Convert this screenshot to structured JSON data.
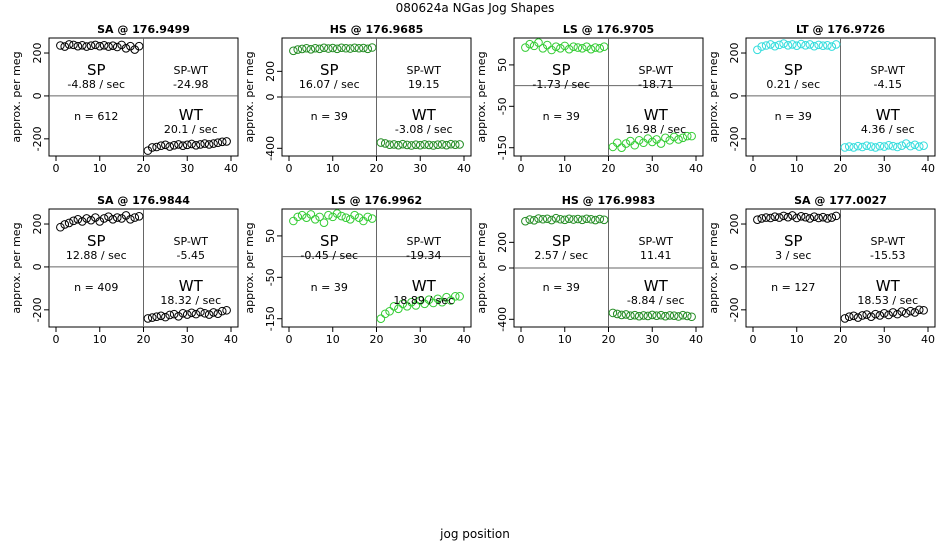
{
  "figure": {
    "title": "080624a   NGas Jog Shapes",
    "xlabel": "jog position"
  },
  "chart_data": [
    {
      "type": "scatter",
      "title": "SA @ 176.9499",
      "ylabel": "approx. per meg",
      "color": "#000000",
      "xlim": [
        0,
        40
      ],
      "ylim": [
        -280,
        270
      ],
      "xticks": [
        "0",
        "10",
        "20",
        "30",
        "40"
      ],
      "yticks": [
        {
          "value": 200,
          "label": "200"
        },
        {
          "value": 0,
          "label": "0"
        },
        {
          "value": -200,
          "label": "-200"
        }
      ],
      "x": [
        1,
        2,
        3,
        4,
        5,
        6,
        7,
        8,
        9,
        10,
        11,
        12,
        13,
        14,
        15,
        16,
        17,
        18,
        19,
        21,
        22,
        23,
        24,
        25,
        26,
        27,
        28,
        29,
        30,
        31,
        32,
        33,
        34,
        35,
        36,
        37,
        38,
        39
      ],
      "y": [
        235,
        230,
        240,
        238,
        232,
        236,
        230,
        234,
        238,
        232,
        236,
        230,
        234,
        228,
        238,
        222,
        232,
        216,
        232,
        -255,
        -240,
        -238,
        -232,
        -228,
        -236,
        -230,
        -226,
        -232,
        -228,
        -224,
        -230,
        -226,
        -222,
        -226,
        -222,
        -218,
        -214,
        -212
      ],
      "annotations": {
        "sp_label": "SP",
        "sp_value": "-4.88 / sec",
        "spwt_label": "SP-WT",
        "spwt_value": "-24.98",
        "n_text": "n = 612",
        "wt_label": "WT",
        "wt_value": "20.1 / sec"
      }
    },
    {
      "type": "scatter",
      "title": "HS @ 176.9685",
      "ylabel": "approx. per meg",
      "color": "#228B22",
      "xlim": [
        0,
        40
      ],
      "ylim": [
        -460,
        460
      ],
      "xticks": [
        "0",
        "10",
        "20",
        "30",
        "40"
      ],
      "yticks": [
        {
          "value": 200,
          "label": "200"
        },
        {
          "value": 0,
          "label": "0"
        },
        {
          "value": -400,
          "label": "-400"
        }
      ],
      "x": [
        1,
        2,
        3,
        4,
        5,
        6,
        7,
        8,
        9,
        10,
        11,
        12,
        13,
        14,
        15,
        16,
        17,
        18,
        19,
        21,
        22,
        23,
        24,
        25,
        26,
        27,
        28,
        29,
        30,
        31,
        32,
        33,
        34,
        35,
        36,
        37,
        38,
        39
      ],
      "y": [
        360,
        370,
        375,
        380,
        372,
        380,
        376,
        384,
        378,
        382,
        376,
        384,
        380,
        378,
        384,
        380,
        382,
        376,
        386,
        -355,
        -362,
        -372,
        -370,
        -376,
        -368,
        -374,
        -378,
        -372,
        -376,
        -370,
        -374,
        -378,
        -372,
        -370,
        -376,
        -368,
        -372,
        -370
      ],
      "annotations": {
        "sp_label": "SP",
        "sp_value": "16.07 / sec",
        "spwt_label": "SP-WT",
        "spwt_value": "19.15",
        "n_text": "n = 39",
        "wt_label": "WT",
        "wt_value": "-3.08 / sec"
      }
    },
    {
      "type": "scatter",
      "title": "LS @ 176.9705",
      "ylabel": "approx. per meg",
      "color": "#33CC33",
      "xlim": [
        0,
        40
      ],
      "ylim": [
        -170,
        115
      ],
      "xticks": [
        "0",
        "10",
        "20",
        "30",
        "40"
      ],
      "yticks": [
        {
          "value": 50,
          "label": "50"
        },
        {
          "value": -50,
          "label": "-50"
        },
        {
          "value": -150,
          "label": "-150"
        }
      ],
      "x": [
        1,
        2,
        3,
        4,
        5,
        6,
        7,
        8,
        9,
        10,
        11,
        12,
        13,
        14,
        15,
        16,
        17,
        18,
        19,
        21,
        22,
        23,
        24,
        25,
        26,
        27,
        28,
        29,
        30,
        31,
        32,
        33,
        34,
        35,
        36,
        37,
        38,
        39
      ],
      "y": [
        92,
        100,
        96,
        104,
        90,
        98,
        86,
        94,
        90,
        96,
        88,
        94,
        92,
        90,
        94,
        88,
        92,
        90,
        94,
        -148,
        -138,
        -150,
        -140,
        -134,
        -144,
        -132,
        -138,
        -128,
        -136,
        -130,
        -140,
        -126,
        -132,
        -124,
        -130,
        -126,
        -122,
        -122
      ],
      "annotations": {
        "sp_label": "SP",
        "sp_value": "-1.73 / sec",
        "spwt_label": "SP-WT",
        "spwt_value": "-18.71",
        "n_text": "n = 39",
        "wt_label": "WT",
        "wt_value": "16.98 / sec"
      }
    },
    {
      "type": "scatter",
      "title": "LT @ 176.9726",
      "ylabel": "approx. per meg",
      "color": "#33DDDD",
      "xlim": [
        0,
        40
      ],
      "ylim": [
        -280,
        270
      ],
      "xticks": [
        "0",
        "10",
        "20",
        "30",
        "40"
      ],
      "yticks": [
        {
          "value": 200,
          "label": "200"
        },
        {
          "value": 0,
          "label": "0"
        },
        {
          "value": -200,
          "label": "-200"
        }
      ],
      "x": [
        1,
        2,
        3,
        4,
        5,
        6,
        7,
        8,
        9,
        10,
        11,
        12,
        13,
        14,
        15,
        16,
        17,
        18,
        19,
        21,
        22,
        23,
        24,
        25,
        26,
        27,
        28,
        29,
        30,
        31,
        32,
        33,
        34,
        35,
        36,
        37,
        38,
        39
      ],
      "y": [
        215,
        230,
        235,
        240,
        232,
        238,
        244,
        236,
        240,
        234,
        242,
        236,
        240,
        232,
        238,
        234,
        236,
        230,
        240,
        -240,
        -236,
        -240,
        -234,
        -238,
        -232,
        -236,
        -240,
        -234,
        -236,
        -230,
        -234,
        -238,
        -232,
        -222,
        -234,
        -228,
        -236,
        -232
      ],
      "annotations": {
        "sp_label": "SP",
        "sp_value": "0.21 / sec",
        "spwt_label": "SP-WT",
        "spwt_value": "-4.15",
        "n_text": "n = 39",
        "wt_label": "WT",
        "wt_value": "4.36 / sec"
      }
    },
    {
      "type": "scatter",
      "title": "SA @ 176.9844",
      "ylabel": "approx. per meg",
      "color": "#000000",
      "xlim": [
        0,
        40
      ],
      "ylim": [
        -280,
        270
      ],
      "xticks": [
        "0",
        "10",
        "20",
        "30",
        "40"
      ],
      "yticks": [
        {
          "value": 200,
          "label": "200"
        },
        {
          "value": 0,
          "label": "0"
        },
        {
          "value": -200,
          "label": "-200"
        }
      ],
      "x": [
        1,
        2,
        3,
        4,
        5,
        6,
        7,
        8,
        9,
        10,
        11,
        12,
        13,
        14,
        15,
        16,
        17,
        18,
        19,
        21,
        22,
        23,
        24,
        25,
        26,
        27,
        28,
        29,
        30,
        31,
        32,
        33,
        34,
        35,
        36,
        37,
        38,
        39
      ],
      "y": [
        185,
        198,
        205,
        215,
        222,
        212,
        226,
        218,
        230,
        212,
        226,
        234,
        222,
        230,
        226,
        240,
        222,
        230,
        236,
        -240,
        -236,
        -232,
        -228,
        -234,
        -224,
        -220,
        -230,
        -216,
        -222,
        -214,
        -220,
        -210,
        -216,
        -222,
        -212,
        -218,
        -206,
        -202
      ],
      "annotations": {
        "sp_label": "SP",
        "sp_value": "12.88 / sec",
        "spwt_label": "SP-WT",
        "spwt_value": "-5.45",
        "n_text": "n = 409",
        "wt_label": "WT",
        "wt_value": "18.32 / sec"
      }
    },
    {
      "type": "scatter",
      "title": "LS @ 176.9962",
      "ylabel": "approx. per meg",
      "color": "#33CC33",
      "xlim": [
        0,
        40
      ],
      "ylim": [
        -170,
        115
      ],
      "xticks": [
        "0",
        "10",
        "20",
        "30",
        "40"
      ],
      "yticks": [
        {
          "value": 50,
          "label": "50"
        },
        {
          "value": -50,
          "label": "-50"
        },
        {
          "value": -150,
          "label": "-150"
        }
      ],
      "x": [
        1,
        2,
        3,
        4,
        5,
        6,
        7,
        8,
        9,
        10,
        11,
        12,
        13,
        14,
        15,
        16,
        17,
        18,
        19,
        21,
        22,
        23,
        24,
        25,
        26,
        27,
        28,
        29,
        30,
        31,
        32,
        33,
        34,
        35,
        36,
        37,
        38,
        39
      ],
      "y": [
        86,
        96,
        100,
        94,
        102,
        90,
        96,
        82,
        100,
        96,
        104,
        98,
        94,
        90,
        100,
        94,
        86,
        96,
        92,
        -150,
        -138,
        -132,
        -120,
        -126,
        -114,
        -120,
        -110,
        -118,
        -106,
        -114,
        -104,
        -112,
        -102,
        -110,
        -98,
        -106,
        -96,
        -96
      ],
      "annotations": {
        "sp_label": "SP",
        "sp_value": "-0.45 / sec",
        "spwt_label": "SP-WT",
        "spwt_value": "-19.34",
        "n_text": "n = 39",
        "wt_label": "WT",
        "wt_value": "18.89 / sec"
      }
    },
    {
      "type": "scatter",
      "title": "HS @ 176.9983",
      "ylabel": "approx. per meg",
      "color": "#228B22",
      "xlim": [
        0,
        40
      ],
      "ylim": [
        -460,
        460
      ],
      "xticks": [
        "0",
        "10",
        "20",
        "30",
        "40"
      ],
      "yticks": [
        {
          "value": 200,
          "label": "200"
        },
        {
          "value": 0,
          "label": "0"
        },
        {
          "value": -400,
          "label": "-400"
        }
      ],
      "x": [
        1,
        2,
        3,
        4,
        5,
        6,
        7,
        8,
        9,
        10,
        11,
        12,
        13,
        14,
        15,
        16,
        17,
        18,
        19,
        21,
        22,
        23,
        24,
        25,
        26,
        27,
        28,
        29,
        30,
        31,
        32,
        33,
        34,
        35,
        36,
        37,
        38,
        39
      ],
      "y": [
        365,
        378,
        372,
        386,
        380,
        384,
        374,
        388,
        380,
        376,
        384,
        378,
        382,
        376,
        384,
        380,
        374,
        382,
        376,
        -350,
        -358,
        -366,
        -362,
        -372,
        -368,
        -376,
        -370,
        -374,
        -366,
        -372,
        -368,
        -376,
        -370,
        -372,
        -378,
        -368,
        -374,
        -380
      ],
      "annotations": {
        "sp_label": "SP",
        "sp_value": "2.57 / sec",
        "spwt_label": "SP-WT",
        "spwt_value": "11.41",
        "n_text": "n = 39",
        "wt_label": "WT",
        "wt_value": "-8.84 / sec"
      }
    },
    {
      "type": "scatter",
      "title": "SA @ 177.0027",
      "ylabel": "approx. per meg",
      "color": "#000000",
      "xlim": [
        0,
        40
      ],
      "ylim": [
        -280,
        270
      ],
      "xticks": [
        "0",
        "10",
        "20",
        "30",
        "40"
      ],
      "yticks": [
        {
          "value": 200,
          "label": "200"
        },
        {
          "value": 0,
          "label": "0"
        },
        {
          "value": -200,
          "label": "-200"
        }
      ],
      "x": [
        1,
        2,
        3,
        4,
        5,
        6,
        7,
        8,
        9,
        10,
        11,
        12,
        13,
        14,
        15,
        16,
        17,
        18,
        19,
        21,
        22,
        23,
        24,
        25,
        26,
        27,
        28,
        29,
        30,
        31,
        32,
        33,
        34,
        35,
        36,
        37,
        38,
        39
      ],
      "y": [
        220,
        226,
        230,
        228,
        234,
        230,
        238,
        232,
        240,
        228,
        236,
        232,
        226,
        234,
        228,
        232,
        226,
        230,
        238,
        -240,
        -232,
        -228,
        -236,
        -226,
        -222,
        -232,
        -220,
        -226,
        -216,
        -224,
        -212,
        -220,
        -208,
        -216,
        -206,
        -212,
        -200,
        -202
      ],
      "annotations": {
        "sp_label": "SP",
        "sp_value": "3 / sec",
        "spwt_label": "SP-WT",
        "spwt_value": "-15.53",
        "n_text": "n = 127",
        "wt_label": "WT",
        "wt_value": "18.53 / sec"
      }
    }
  ]
}
